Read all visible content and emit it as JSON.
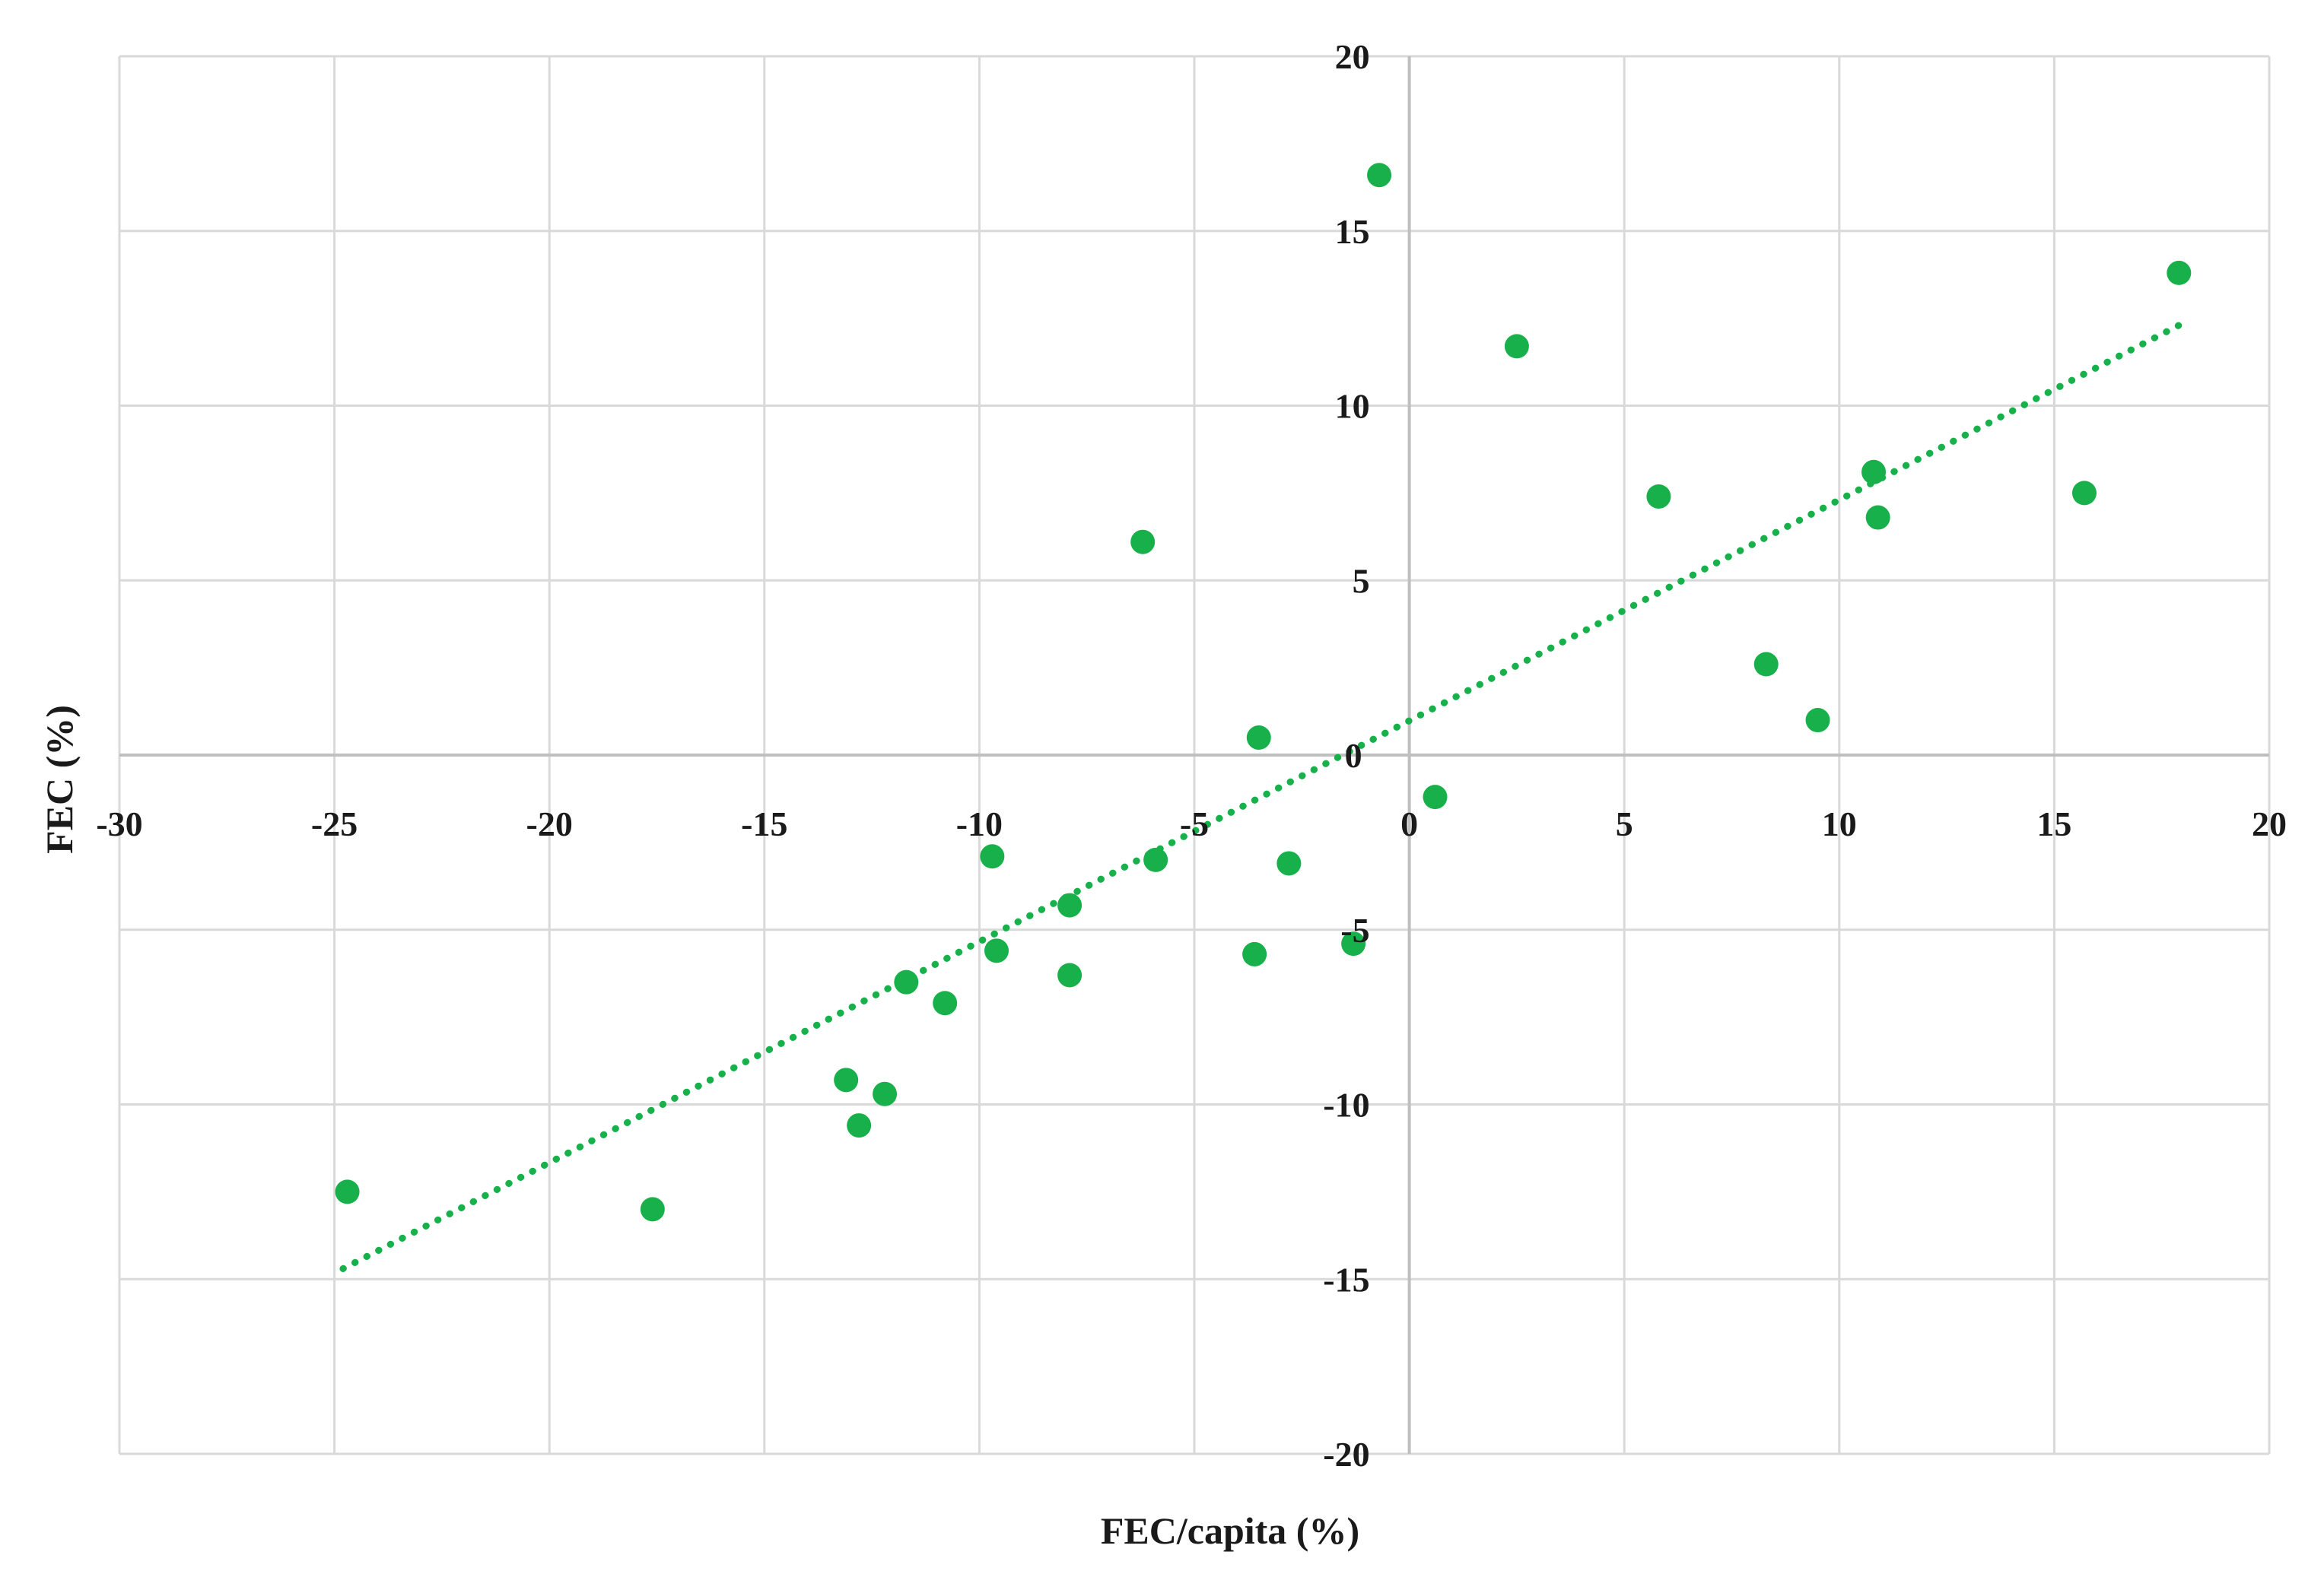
{
  "chart_data": {
    "type": "scatter",
    "xlabel": "FEC/capita (%)",
    "ylabel": "FEC (%)",
    "xlim": [
      -30,
      20
    ],
    "ylim": [
      -20,
      20
    ],
    "x_ticks": [
      -30,
      -25,
      -20,
      -15,
      -10,
      -5,
      0,
      5,
      10,
      15,
      20
    ],
    "y_ticks": [
      -20,
      -15,
      -10,
      -5,
      0,
      5,
      10,
      15,
      20
    ],
    "grid": true,
    "marker_color": "#18b04a",
    "trendline": {
      "style": "dotted",
      "color": "#18b04a",
      "points": [
        [
          -24.8,
          -14.7
        ],
        [
          17.9,
          12.3
        ]
      ]
    },
    "points": [
      [
        -0.7,
        16.6
      ],
      [
        2.5,
        11.7
      ],
      [
        17.9,
        13.8
      ],
      [
        10.8,
        8.1
      ],
      [
        10.9,
        6.8
      ],
      [
        15.7,
        7.5
      ],
      [
        5.8,
        7.4
      ],
      [
        -6.2,
        6.1
      ],
      [
        8.3,
        2.6
      ],
      [
        9.5,
        1.0
      ],
      [
        -3.5,
        0.5
      ],
      [
        0.6,
        -1.2
      ],
      [
        -9.7,
        -2.9
      ],
      [
        -5.9,
        -3.0
      ],
      [
        -2.8,
        -3.1
      ],
      [
        -7.9,
        -4.3
      ],
      [
        -9.6,
        -5.6
      ],
      [
        -3.6,
        -5.7
      ],
      [
        -1.3,
        -5.4
      ],
      [
        -7.9,
        -6.3
      ],
      [
        -11.7,
        -6.5
      ],
      [
        -10.8,
        -7.1
      ],
      [
        -13.1,
        -9.3
      ],
      [
        -12.2,
        -9.7
      ],
      [
        -12.8,
        -10.6
      ],
      [
        -24.7,
        -12.5
      ],
      [
        -17.6,
        -13.0
      ]
    ]
  }
}
